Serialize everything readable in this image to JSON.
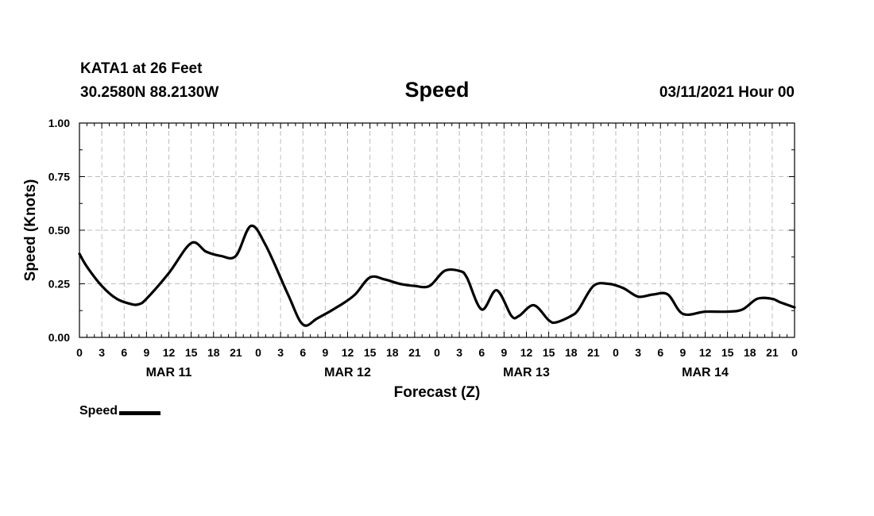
{
  "header": {
    "station": "KATA1 at 26 Feet",
    "coords": "30.2580N 88.2130W",
    "title": "Speed",
    "datetime": "03/11/2021 Hour 00"
  },
  "legend": {
    "label": "Speed",
    "color": "#000000"
  },
  "chart_data": {
    "type": "line",
    "title": "Speed",
    "xlabel": "Forecast (Z)",
    "ylabel": "Speed (Knots)",
    "xlim": [
      0,
      96
    ],
    "ylim": [
      0,
      1
    ],
    "yticks": [
      "0.00",
      "0.25",
      "0.50",
      "0.75",
      "1.00"
    ],
    "xtick_labels": [
      "0",
      "3",
      "6",
      "9",
      "12",
      "15",
      "18",
      "21",
      "0",
      "3",
      "6",
      "9",
      "12",
      "15",
      "18",
      "21",
      "0",
      "3",
      "6",
      "9",
      "12",
      "15",
      "18",
      "21",
      "0",
      "3",
      "6",
      "9",
      "12",
      "15",
      "18",
      "21",
      "0"
    ],
    "day_labels": [
      {
        "label": "MAR 11",
        "hour": 12
      },
      {
        "label": "MAR 12",
        "hour": 36
      },
      {
        "label": "MAR 13",
        "hour": 60
      },
      {
        "label": "MAR 14",
        "hour": 84
      }
    ],
    "grid": true,
    "series": [
      {
        "name": "Speed",
        "color": "#000000",
        "x": [
          0,
          1,
          3,
          5,
          7,
          8,
          9,
          12,
          15,
          17,
          19,
          21,
          23,
          25,
          28,
          30,
          32,
          35,
          37,
          39,
          41,
          43,
          45,
          47,
          49,
          51,
          52,
          54,
          56,
          58,
          59,
          61,
          63,
          64,
          66,
          67,
          69,
          71,
          73,
          75,
          77,
          79,
          81,
          84,
          87,
          89,
          91,
          93,
          94,
          96
        ],
        "values": [
          0.39,
          0.33,
          0.24,
          0.18,
          0.155,
          0.155,
          0.18,
          0.3,
          0.44,
          0.4,
          0.38,
          0.38,
          0.52,
          0.43,
          0.2,
          0.06,
          0.09,
          0.15,
          0.2,
          0.28,
          0.27,
          0.25,
          0.24,
          0.24,
          0.31,
          0.31,
          0.28,
          0.13,
          0.22,
          0.1,
          0.1,
          0.15,
          0.08,
          0.07,
          0.1,
          0.13,
          0.24,
          0.25,
          0.23,
          0.19,
          0.2,
          0.2,
          0.11,
          0.12,
          0.12,
          0.13,
          0.18,
          0.18,
          0.165,
          0.14
        ]
      }
    ]
  }
}
